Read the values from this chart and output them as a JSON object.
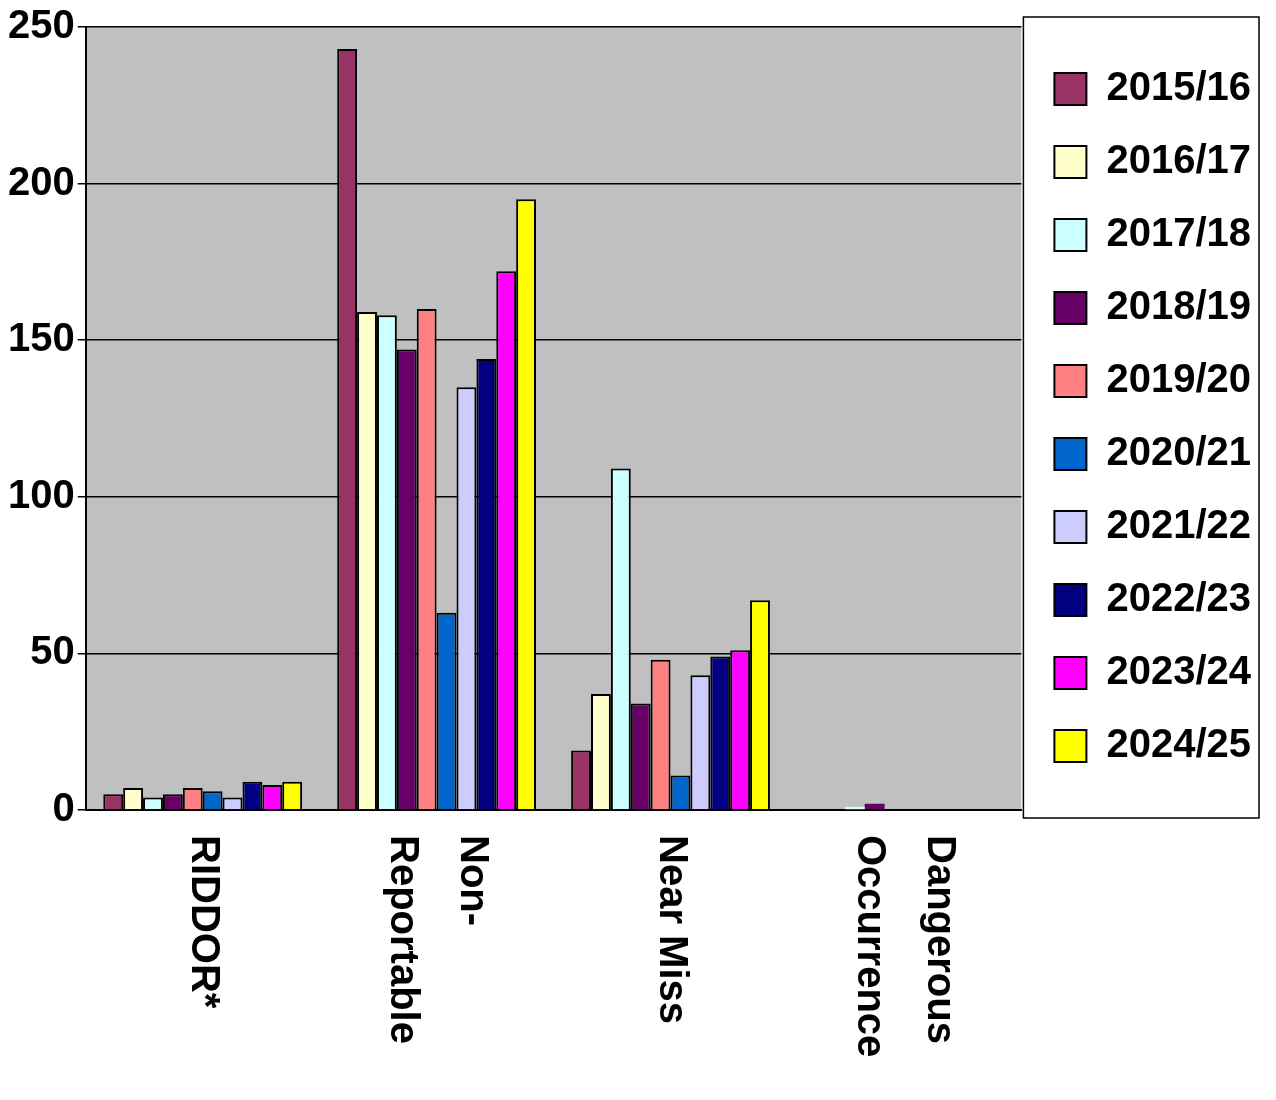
{
  "chart_data": {
    "type": "bar",
    "categories": [
      "RIDDOR*",
      "Non-Reportable",
      "Near Miss",
      "Dangerous Occurrence"
    ],
    "series": [
      {
        "name": "2015/16",
        "color": "#993366",
        "values": [
          5,
          243,
          19,
          0
        ]
      },
      {
        "name": "2016/17",
        "color": "#ffffcc",
        "values": [
          7,
          159,
          37,
          0
        ]
      },
      {
        "name": "2017/18",
        "color": "#ccffff",
        "values": [
          4,
          158,
          109,
          1
        ]
      },
      {
        "name": "2018/19",
        "color": "#660066",
        "values": [
          5,
          147,
          34,
          2
        ]
      },
      {
        "name": "2019/20",
        "color": "#ff8080",
        "values": [
          7,
          160,
          48,
          0
        ]
      },
      {
        "name": "2020/21",
        "color": "#0066cc",
        "values": [
          6,
          63,
          11,
          0
        ]
      },
      {
        "name": "2021/22",
        "color": "#ccccff",
        "values": [
          4,
          135,
          43,
          0
        ]
      },
      {
        "name": "2022/23",
        "color": "#000080",
        "values": [
          9,
          144,
          49,
          0
        ]
      },
      {
        "name": "2023/24",
        "color": "#ff00ff",
        "values": [
          8,
          172,
          51,
          0
        ]
      },
      {
        "name": "2024/25",
        "color": "#ffff00",
        "values": [
          9,
          195,
          67,
          0
        ]
      }
    ],
    "ylim": [
      0,
      250
    ],
    "yticks": [
      0,
      50,
      100,
      150,
      200,
      250
    ],
    "grid": "y",
    "legend": "right"
  }
}
